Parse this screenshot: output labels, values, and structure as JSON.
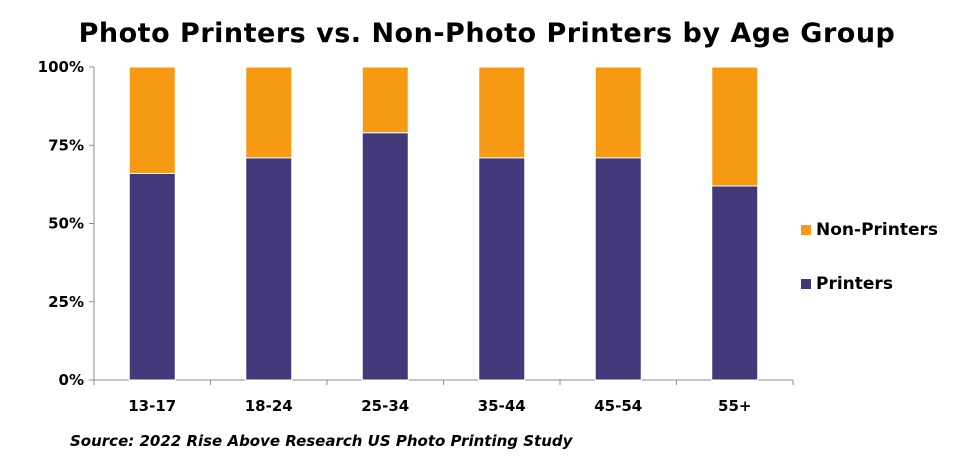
{
  "chart_data": {
    "type": "bar",
    "stacked": true,
    "title": "Photo Printers vs. Non-Photo Printers by Age Group",
    "categories": [
      "13-17",
      "18-24",
      "25-34",
      "35-44",
      "45-54",
      "55+"
    ],
    "series": [
      {
        "name": "Printers",
        "color": "#43387a",
        "values": [
          66,
          71,
          79,
          71,
          71,
          62
        ]
      },
      {
        "name": "Non-Printers",
        "color": "#f59a12",
        "values": [
          34,
          29,
          21,
          29,
          29,
          38
        ]
      }
    ],
    "ylim": [
      0,
      100
    ],
    "yticks": [
      0,
      25,
      50,
      75,
      100
    ],
    "ytick_labels": [
      "0%",
      "25%",
      "50%",
      "75%",
      "100%"
    ],
    "xlabel": "",
    "ylabel": "",
    "grid": false,
    "legend_placement": "right",
    "legend_order": [
      "Non-Printers",
      "Printers"
    ],
    "source": "Source: 2022 Rise Above Research US Photo Printing Study"
  }
}
